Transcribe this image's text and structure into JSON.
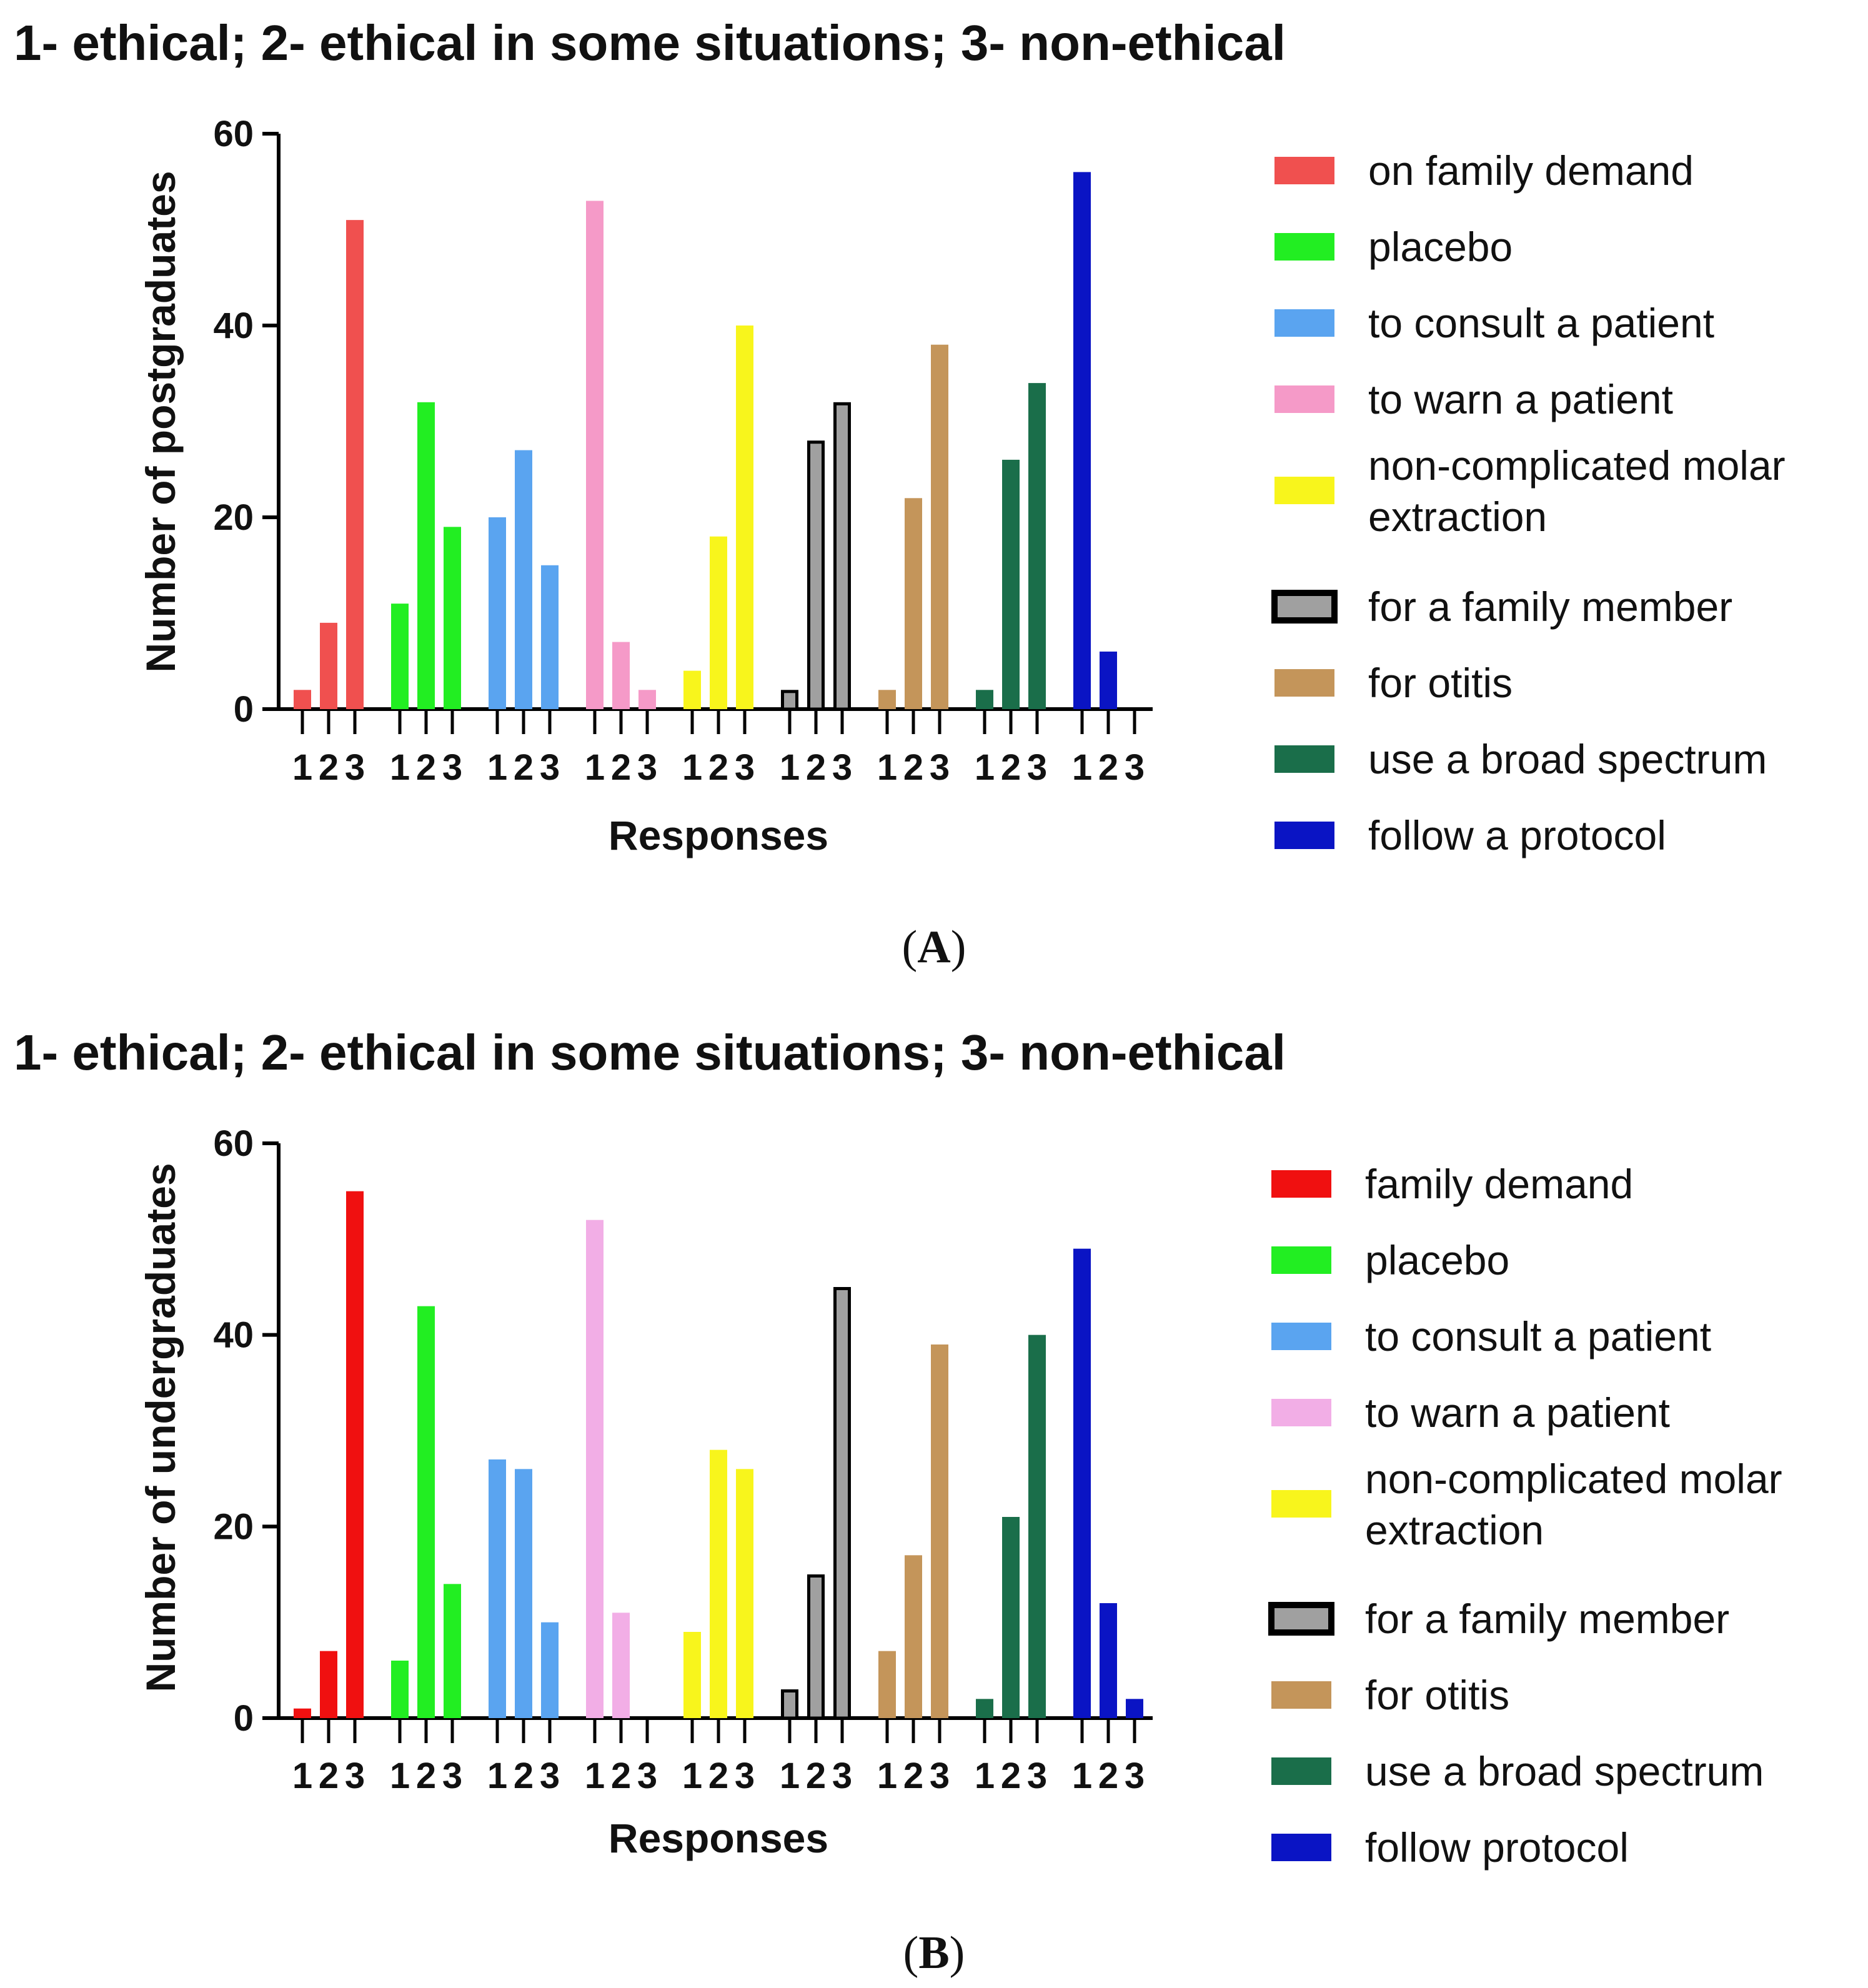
{
  "chart_data": [
    {
      "type": "bar",
      "panel_label": "A",
      "title": "1- ethical; 2- ethical in some situations; 3- non-ethical",
      "xlabel": "Responses",
      "ylabel": "Number of postgraduates",
      "ylim": [
        0,
        60
      ],
      "yticks": [
        "0",
        "20",
        "40",
        "60"
      ],
      "categories": [
        "1",
        "2",
        "3"
      ],
      "legend_position": "right",
      "series": [
        {
          "name": "on family demand",
          "color": "#f0504f",
          "values": [
            2,
            9,
            51
          ]
        },
        {
          "name": "placebo",
          "color": "#22ee22",
          "values": [
            11,
            32,
            19
          ]
        },
        {
          "name": "to consult a patient",
          "color": "#5aa4f0",
          "values": [
            20,
            27,
            15
          ]
        },
        {
          "name": "to warn a patient",
          "color": "#f59ac8",
          "values": [
            53,
            7,
            2
          ]
        },
        {
          "name": "non-complicated molar extraction",
          "color": "#f8f51c",
          "values": [
            4,
            18,
            40
          ]
        },
        {
          "name": "for a family member",
          "color": "#a0a0a0",
          "border": "#000000",
          "values": [
            2,
            28,
            32
          ]
        },
        {
          "name": "for otitis",
          "color": "#c4955a",
          "values": [
            2,
            22,
            38
          ]
        },
        {
          "name": "use a broad spectrum",
          "color": "#1a6e4a",
          "values": [
            2,
            26,
            34
          ]
        },
        {
          "name": "follow a protocol",
          "color": "#0a14c4",
          "values": [
            56,
            6,
            0
          ]
        }
      ]
    },
    {
      "type": "bar",
      "panel_label": "B",
      "title": "1- ethical; 2- ethical in some situations; 3- non-ethical",
      "xlabel": "Responses",
      "ylabel": "Number of undergraduates",
      "ylim": [
        0,
        60
      ],
      "yticks": [
        "0",
        "20",
        "40",
        "60"
      ],
      "categories": [
        "1",
        "2",
        "3"
      ],
      "legend_position": "right",
      "series": [
        {
          "name": "family demand",
          "color": "#f01010",
          "values": [
            1,
            7,
            55
          ]
        },
        {
          "name": "placebo",
          "color": "#22ee22",
          "values": [
            6,
            43,
            14
          ]
        },
        {
          "name": "to consult a patient",
          "color": "#5aa4f0",
          "values": [
            27,
            26,
            10
          ]
        },
        {
          "name": "to warn a patient",
          "color": "#f2aee6",
          "values": [
            52,
            11,
            0
          ]
        },
        {
          "name": "non-complicated molar extraction",
          "color": "#f8f51c",
          "values": [
            9,
            28,
            26
          ]
        },
        {
          "name": "for a family member",
          "color": "#a0a0a0",
          "border": "#000000",
          "values": [
            3,
            15,
            45
          ]
        },
        {
          "name": "for otitis",
          "color": "#c4955a",
          "values": [
            7,
            17,
            39
          ]
        },
        {
          "name": "use a broad spectrum",
          "color": "#1a6e4a",
          "values": [
            2,
            21,
            40
          ]
        },
        {
          "name": "follow protocol",
          "color": "#0a14c4",
          "values": [
            49,
            12,
            2
          ]
        }
      ]
    }
  ]
}
